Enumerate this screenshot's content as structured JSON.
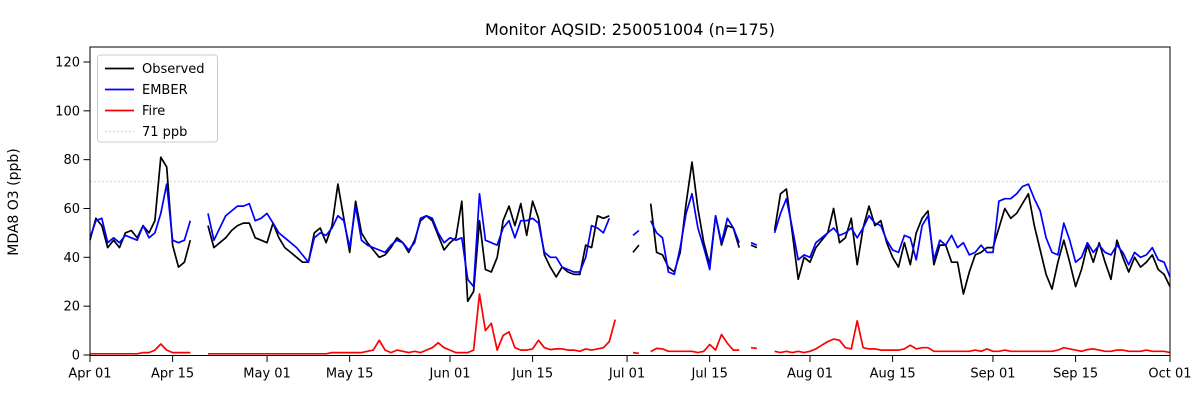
{
  "header": {
    "title": "Monitor AQSID: 250051004 (n=175)"
  },
  "chart_data": {
    "type": "line",
    "title": "Monitor AQSID: 250051004 (n=175)",
    "xlabel": "",
    "ylabel": "MDA8 O3 (ppb)",
    "x_start_label": "Apr 01",
    "x_end_label": "Oct 01",
    "x_days_span": 183,
    "ylim": [
      0,
      126
    ],
    "grid": false,
    "legend_position": "upper-left",
    "y_ticks": [
      0,
      20,
      40,
      60,
      80,
      100,
      120
    ],
    "x_tick_days": [
      0,
      14,
      30,
      44,
      61,
      75,
      91,
      105,
      122,
      136,
      153,
      167,
      183
    ],
    "x_tick_labels": [
      "Apr 01",
      "Apr 15",
      "May 01",
      "May 15",
      "Jun 01",
      "Jun 15",
      "Jul 01",
      "Jul 15",
      "Aug 01",
      "Aug 15",
      "Sep 01",
      "Sep 15",
      "Oct 01"
    ],
    "threshold": {
      "label": "71 ppb",
      "value": 71,
      "color": "#d3d3d3",
      "style": "dotted"
    },
    "series": [
      {
        "name": "Observed",
        "color": "#000000",
        "values": [
          47,
          56,
          53,
          44,
          47,
          44,
          50,
          51,
          48,
          53,
          50,
          55,
          81,
          77,
          45,
          36,
          38,
          47,
          null,
          null,
          53,
          44,
          46,
          48,
          51,
          53,
          54,
          54,
          48,
          47,
          46,
          54,
          48,
          44,
          42,
          40,
          38,
          38,
          50,
          52,
          46,
          53,
          70,
          56,
          42,
          63,
          50,
          46,
          43,
          40,
          41,
          44,
          48,
          46,
          42,
          47,
          55,
          57,
          55,
          49,
          43,
          46,
          48,
          63,
          22,
          26,
          55,
          35,
          34,
          40,
          55,
          61,
          53,
          62,
          49,
          63,
          56,
          41,
          36,
          32,
          36,
          34,
          33,
          33,
          45,
          44,
          57,
          56,
          57,
          null,
          null,
          null,
          42,
          45,
          null,
          62,
          42,
          41,
          36,
          34,
          42,
          62,
          79,
          60,
          46,
          37,
          57,
          45,
          53,
          52,
          44,
          null,
          45,
          44,
          null,
          null,
          51,
          66,
          68,
          50,
          31,
          40,
          38,
          44,
          47,
          50,
          60,
          46,
          48,
          56,
          37,
          52,
          61,
          53,
          55,
          46,
          40,
          36,
          46,
          37,
          50,
          56,
          59,
          37,
          45,
          45,
          38,
          38,
          25,
          34,
          41,
          42,
          44,
          44,
          52,
          60,
          56,
          58,
          62,
          66,
          53,
          43,
          33,
          27,
          38,
          47,
          38,
          28,
          35,
          45,
          38,
          46,
          38,
          31,
          47,
          40,
          34,
          40,
          36,
          38,
          41,
          35,
          33,
          28
        ]
      },
      {
        "name": "EMBER",
        "color": "#0000ff",
        "values": [
          48,
          55,
          56,
          46,
          48,
          46,
          49,
          48,
          47,
          53,
          48,
          50,
          58,
          70,
          47,
          46,
          47,
          55,
          null,
          null,
          58,
          47,
          52,
          57,
          59,
          61,
          61,
          62,
          55,
          56,
          58,
          54,
          50,
          48,
          46,
          44,
          41,
          38,
          48,
          50,
          49,
          52,
          57,
          55,
          44,
          61,
          47,
          45,
          44,
          43,
          42,
          45,
          47,
          46,
          43,
          46,
          56,
          57,
          56,
          50,
          46,
          48,
          47,
          48,
          31,
          28,
          66,
          47,
          46,
          45,
          52,
          55,
          48,
          55,
          55,
          56,
          54,
          42,
          40,
          40,
          36,
          35,
          34,
          34,
          40,
          53,
          52,
          50,
          56,
          null,
          null,
          null,
          49,
          51,
          null,
          55,
          50,
          48,
          34,
          33,
          44,
          58,
          66,
          52,
          44,
          35,
          57,
          46,
          56,
          52,
          46,
          null,
          46,
          45,
          null,
          null,
          50,
          58,
          64,
          52,
          39,
          41,
          40,
          46,
          48,
          50,
          52,
          49,
          50,
          52,
          48,
          52,
          57,
          54,
          53,
          47,
          43,
          42,
          49,
          48,
          39,
          53,
          57,
          39,
          47,
          45,
          49,
          44,
          46,
          41,
          42,
          45,
          42,
          42,
          63,
          64,
          64,
          66,
          69,
          70,
          64,
          59,
          48,
          42,
          41,
          54,
          47,
          38,
          40,
          46,
          42,
          45,
          42,
          41,
          45,
          42,
          37,
          42,
          40,
          41,
          44,
          39,
          38,
          32
        ]
      },
      {
        "name": "Fire",
        "color": "#ff0000",
        "values": [
          0.5,
          0.5,
          0.5,
          0.5,
          0.5,
          0.5,
          0.5,
          0.5,
          0.5,
          1,
          1,
          2,
          4.5,
          2,
          1,
          1,
          1,
          1,
          null,
          null,
          0.5,
          0.5,
          0.5,
          0.5,
          0.5,
          0.5,
          0.5,
          0.5,
          0.5,
          0.5,
          0.5,
          0.5,
          0.5,
          0.5,
          0.5,
          0.5,
          0.5,
          0.5,
          0.5,
          0.5,
          0.5,
          1,
          1,
          1,
          1,
          1,
          1,
          1.5,
          2,
          6,
          2,
          1,
          2,
          1.5,
          1,
          1.5,
          1,
          2,
          3,
          5,
          3,
          2,
          1,
          1,
          1,
          2,
          25,
          10,
          13,
          2,
          8,
          9.5,
          3,
          2,
          2,
          2.5,
          6,
          3,
          2.2,
          2.5,
          2.5,
          2,
          2,
          1.5,
          2.5,
          2,
          2.5,
          3,
          5.5,
          14.5,
          null,
          null,
          1,
          0.7,
          null,
          1.4,
          2.7,
          2.5,
          1.5,
          1.5,
          1.5,
          1.5,
          1.5,
          1,
          1.5,
          4.3,
          2,
          8.4,
          4.8,
          2,
          2,
          null,
          3,
          2.7,
          null,
          null,
          1.5,
          1,
          1.5,
          1,
          1.5,
          1,
          1.5,
          2.5,
          4,
          5.5,
          6.5,
          6,
          3,
          2.5,
          14,
          3,
          2.5,
          2.5,
          2,
          2,
          2,
          2,
          2.5,
          4,
          2.5,
          3,
          3,
          1.5,
          1.5,
          1.5,
          1.5,
          1.5,
          1.5,
          1.5,
          2,
          1.5,
          2.5,
          1.5,
          1.5,
          2,
          1.5,
          1.5,
          1.5,
          1.5,
          1.5,
          1.5,
          1.5,
          1.5,
          2,
          3,
          2.5,
          2,
          1.5,
          2.2,
          2.5,
          2,
          1.5,
          1.5,
          2,
          2,
          1.5,
          1.5,
          1.5,
          2,
          1.5,
          1.5,
          1.5,
          1
        ]
      }
    ],
    "legend": [
      "Observed",
      "EMBER",
      "Fire",
      "71 ppb"
    ]
  }
}
